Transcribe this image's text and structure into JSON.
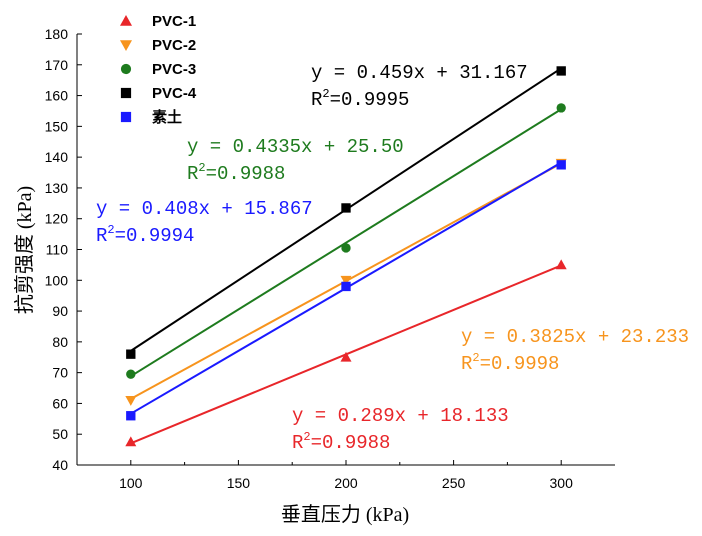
{
  "chart_data": {
    "type": "scatter",
    "xlabel": "垂直压力 (kPa)",
    "ylabel": "抗剪强度 (kPa)",
    "xlim": [
      75,
      325
    ],
    "ylim": [
      40,
      180
    ],
    "xticks": [
      100,
      150,
      200,
      250,
      300
    ],
    "yticks": [
      40,
      50,
      60,
      70,
      80,
      90,
      100,
      110,
      120,
      130,
      140,
      150,
      160,
      170,
      180
    ],
    "legend_position": "top-left",
    "grid": false,
    "series": [
      {
        "name": "PVC-1",
        "color": "#e8262a",
        "marker": "triangle-up",
        "x": [
          100,
          200,
          300
        ],
        "y": [
          47.5,
          75,
          105
        ],
        "fit": {
          "slope": 0.289,
          "intercept": 18.133,
          "equation": "y = 0.289x + 18.133",
          "r2_prefix": "R",
          "r2_sup": "2",
          "r2_value": "=0.9988"
        }
      },
      {
        "name": "PVC-2",
        "color": "#f7941d",
        "marker": "triangle-down",
        "x": [
          100,
          200,
          300
        ],
        "y": [
          61,
          100,
          138
        ],
        "fit": {
          "slope": 0.3825,
          "intercept": 23.233,
          "equation": "y = 0.3825x + 23.233",
          "r2_prefix": "R",
          "r2_sup": "2",
          "r2_value": "=0.9998"
        }
      },
      {
        "name": "PVC-3",
        "color": "#1e7b1e",
        "marker": "circle",
        "x": [
          100,
          200,
          300
        ],
        "y": [
          69.5,
          110.5,
          156
        ],
        "fit": {
          "slope": 0.4335,
          "intercept": 25.5,
          "equation": "y = 0.4335x + 25.50",
          "r2_prefix": "R",
          "r2_sup": "2",
          "r2_value": "=0.9988"
        }
      },
      {
        "name": "PVC-4",
        "color": "#000000",
        "marker": "square",
        "x": [
          100,
          200,
          300
        ],
        "y": [
          76,
          123.5,
          168
        ],
        "fit": {
          "slope": 0.459,
          "intercept": 31.167,
          "equation": "y = 0.459x + 31.167",
          "r2_prefix": "R",
          "r2_sup": "2",
          "r2_value": "=0.9995"
        }
      },
      {
        "name": "素土",
        "color": "#1a1aff",
        "marker": "square",
        "x": [
          100,
          200,
          300
        ],
        "y": [
          56,
          98,
          137.5
        ],
        "fit": {
          "slope": 0.408,
          "intercept": 15.867,
          "equation": "y = 0.408x + 15.867",
          "r2_prefix": "R",
          "r2_sup": "2",
          "r2_value": "=0.9994"
        }
      }
    ]
  }
}
